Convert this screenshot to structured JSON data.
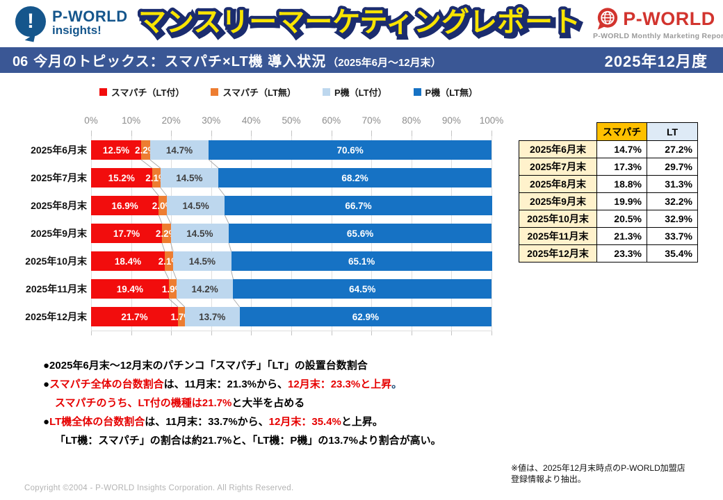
{
  "header": {
    "insights_logo": {
      "line1": "P-WORLD",
      "line2": "insights!",
      "icon": "exclamation-speech-bubble",
      "color": "#15568C"
    },
    "main_title": "マンスリーマーケティングレポート",
    "title_fill": "#F8E400",
    "title_outline": "#1B2C6E",
    "pworld_logo": {
      "brand": "P-WORLD",
      "subtitle": "P-WORLD Monthly Marketing Report",
      "color": "#D2342E",
      "icon": "globe-speech-bubble"
    }
  },
  "topic_bar": {
    "number": "06",
    "title": "今月のトピックス：スマパチ×LT機 導入状況",
    "period": "（2025年6月～12月末）",
    "month_label": "2025年12月度",
    "bg": "#3A5795"
  },
  "chart_data": {
    "type": "bar",
    "stacked": true,
    "orientation": "horizontal",
    "title": "",
    "categories": [
      "2025年6月末",
      "2025年7月末",
      "2025年8月末",
      "2025年9月末",
      "2025年10月末",
      "2025年11月末",
      "2025年12月末"
    ],
    "series": [
      {
        "name": "スマパチ（LT付）",
        "color": "#F20D0D",
        "label_color": "#FFFFFF",
        "values": [
          12.5,
          15.2,
          16.9,
          17.7,
          18.4,
          19.4,
          21.7
        ]
      },
      {
        "name": "スマパチ（LT無）",
        "color": "#ED7D31",
        "label_color": "#FFFFFF",
        "values": [
          2.2,
          2.1,
          2.0,
          2.2,
          2.1,
          1.9,
          1.7
        ]
      },
      {
        "name": "P機（LT付）",
        "color": "#BDD7EE",
        "label_color": "#3F3F3F",
        "values": [
          14.7,
          14.5,
          14.5,
          14.5,
          14.5,
          14.2,
          13.7
        ]
      },
      {
        "name": "P機（LT無）",
        "color": "#1672C4",
        "label_color": "#FFFFFF",
        "values": [
          70.6,
          68.2,
          66.7,
          65.6,
          65.1,
          64.5,
          62.9
        ]
      }
    ],
    "x_axis": {
      "min": 0,
      "max": 100,
      "tick_labels": [
        "0%",
        "10%",
        "20%",
        "30%",
        "40%",
        "50%",
        "60%",
        "70%",
        "80%",
        "90%",
        "100%"
      ]
    },
    "grid": true,
    "legend_position": "top",
    "connector_lines": true
  },
  "summary_table": {
    "col_headers": [
      "スマパチ",
      "LT"
    ],
    "header_bg": {
      "sumapachi": "#FFC000",
      "lt": "#DEEAF6",
      "date": "#FFF2CC"
    },
    "rows": [
      {
        "date": "2025年6月末",
        "sumapachi": "14.7%",
        "lt": "27.2%"
      },
      {
        "date": "2025年7月末",
        "sumapachi": "17.3%",
        "lt": "29.7%"
      },
      {
        "date": "2025年8月末",
        "sumapachi": "18.8%",
        "lt": "31.3%"
      },
      {
        "date": "2025年9月末",
        "sumapachi": "19.9%",
        "lt": "32.2%"
      },
      {
        "date": "2025年10月末",
        "sumapachi": "20.5%",
        "lt": "32.9%"
      },
      {
        "date": "2025年11月末",
        "sumapachi": "21.3%",
        "lt": "33.7%"
      },
      {
        "date": "2025年12月末",
        "sumapachi": "23.3%",
        "lt": "35.4%"
      }
    ]
  },
  "notes": {
    "lines": [
      {
        "indent": false,
        "segments": [
          {
            "text": "●2025年6月末～12月末のパチンコ「スマパチ」「LT」の設置台数割合",
            "color": "#000000"
          }
        ]
      },
      {
        "indent": false,
        "segments": [
          {
            "text": "●",
            "color": "#000000"
          },
          {
            "text": "スマパチ全体の台数割合",
            "color": "#E60000"
          },
          {
            "text": "は、11月末：21.3%から、",
            "color": "#000000"
          },
          {
            "text": "12月末：23.3%と上昇",
            "color": "#E60000"
          },
          {
            "text": "。",
            "color": "#1F4E79"
          }
        ]
      },
      {
        "indent": true,
        "segments": [
          {
            "text": "スマパチのうち、LT付の機種は21.7%",
            "color": "#E60000"
          },
          {
            "text": "と大半を占める",
            "color": "#000000"
          }
        ]
      },
      {
        "indent": false,
        "segments": [
          {
            "text": "●",
            "color": "#000000"
          },
          {
            "text": "LT機全体の台数割合",
            "color": "#E60000"
          },
          {
            "text": "は、11月末：33.7%から、",
            "color": "#000000"
          },
          {
            "text": "12月末：35.4%",
            "color": "#E60000"
          },
          {
            "text": "と上昇。",
            "color": "#000000"
          }
        ]
      },
      {
        "indent": true,
        "segments": [
          {
            "text": "「LT機：スマパチ」の割合は約21.7%と、「LT機：P機」の13.7%より割合が高い。",
            "color": "#000000"
          }
        ]
      }
    ]
  },
  "footer": {
    "note_line1": "※値は、2025年12月末時点のP-WORLD加盟店",
    "note_line2": "登録情報より抽出。",
    "copyright": "Copyright ©2004 -  P-WORLD Insights Corporation. All Rights Reserved."
  }
}
